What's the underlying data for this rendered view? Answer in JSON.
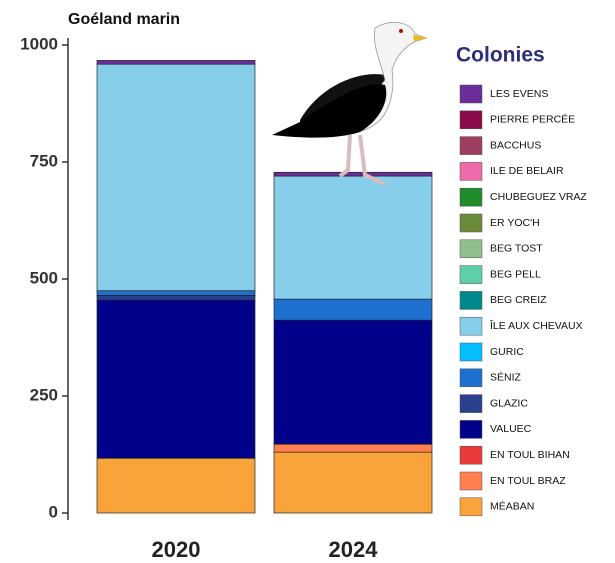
{
  "chart_data": {
    "type": "stacked-bar",
    "title": "Goéland marin",
    "legend_title": "Colonies",
    "categories": [
      "2020",
      "2024"
    ],
    "ylim": [
      0,
      1000
    ],
    "yticks": [
      0,
      250,
      500,
      750,
      1000
    ],
    "series": [
      {
        "name": "LES EVENS",
        "color": "#6a2d9a",
        "values": [
          8,
          8
        ]
      },
      {
        "name": "PIERRE PERCÉE",
        "color": "#8b0a4a",
        "values": [
          0,
          0
        ]
      },
      {
        "name": "BACCHUS",
        "color": "#9c3d62",
        "values": [
          0,
          0
        ]
      },
      {
        "name": "ILE DE BELAIR",
        "color": "#ef6aaa",
        "values": [
          0,
          0
        ]
      },
      {
        "name": "CHUBEGUEZ VRAZ",
        "color": "#1f8b2a",
        "values": [
          0,
          0
        ]
      },
      {
        "name": "ER YOC'H",
        "color": "#6b8a3a",
        "values": [
          0,
          0
        ]
      },
      {
        "name": "BEG TOST",
        "color": "#8fbf8a",
        "values": [
          0,
          0
        ]
      },
      {
        "name": "BEG PELL",
        "color": "#5fcfa8",
        "values": [
          0,
          0
        ]
      },
      {
        "name": "BEG CREIZ",
        "color": "#00898a",
        "values": [
          0,
          0
        ]
      },
      {
        "name": "ÎLE AUX CHEVAUX",
        "color": "#87ceeb",
        "values": [
          484,
          263
        ]
      },
      {
        "name": "GURIC",
        "color": "#00bfff",
        "values": [
          0,
          0
        ]
      },
      {
        "name": "SÉNIZ",
        "color": "#1e6fd0",
        "values": [
          10,
          45
        ]
      },
      {
        "name": "GLAZIC",
        "color": "#2b3f8f",
        "values": [
          10,
          0
        ]
      },
      {
        "name": "VALUEC",
        "color": "#00008b",
        "values": [
          338,
          265
        ]
      },
      {
        "name": "EN TOUL BIHAN",
        "color": "#e83a3a",
        "values": [
          0,
          0
        ]
      },
      {
        "name": "EN TOUL BRAZ",
        "color": "#ff7f50",
        "values": [
          0,
          17
        ]
      },
      {
        "name": "MÉABAN",
        "color": "#f9a43a",
        "values": [
          117,
          130
        ]
      }
    ]
  }
}
